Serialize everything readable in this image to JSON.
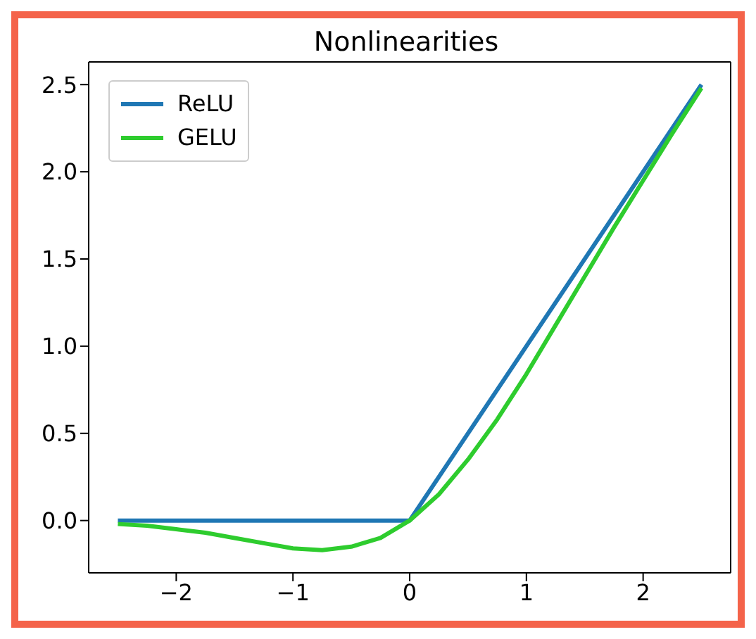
{
  "chart_data": {
    "type": "line",
    "title": "Nonlinearities",
    "series": [
      {
        "name": "ReLU",
        "color": "#1f77b4",
        "x": [
          -2.5,
          0,
          2.5
        ],
        "values": [
          0,
          0,
          2.5
        ]
      },
      {
        "name": "GELU",
        "color": "#2ecc2e",
        "x": [
          -2.5,
          -2.25,
          -2,
          -1.75,
          -1.5,
          -1.25,
          -1,
          -0.75,
          -0.5,
          -0.25,
          0,
          0.25,
          0.5,
          0.75,
          1,
          1.25,
          1.5,
          1.75,
          2,
          2.25,
          2.5
        ],
        "values": [
          -0.02,
          -0.03,
          -0.05,
          -0.07,
          -0.1,
          -0.13,
          -0.16,
          -0.17,
          -0.15,
          -0.1,
          0,
          0.15,
          0.35,
          0.58,
          0.84,
          1.12,
          1.4,
          1.68,
          1.95,
          2.22,
          2.48
        ]
      }
    ],
    "xlim": [
      -2.75,
      2.75
    ],
    "xticks": [
      {
        "value": -2,
        "label": "−2"
      },
      {
        "value": -1,
        "label": "−1"
      },
      0,
      1,
      2
    ],
    "ylim": [
      -0.3,
      2.63
    ],
    "yticks": [
      {
        "value": 0,
        "label": "0.0"
      },
      0.5,
      {
        "value": 1,
        "label": "1.0"
      },
      1.5,
      {
        "value": 2,
        "label": "2.0"
      },
      2.5
    ],
    "grid": false,
    "legend": "top left",
    "marker": "none",
    "line_style": "solid"
  }
}
